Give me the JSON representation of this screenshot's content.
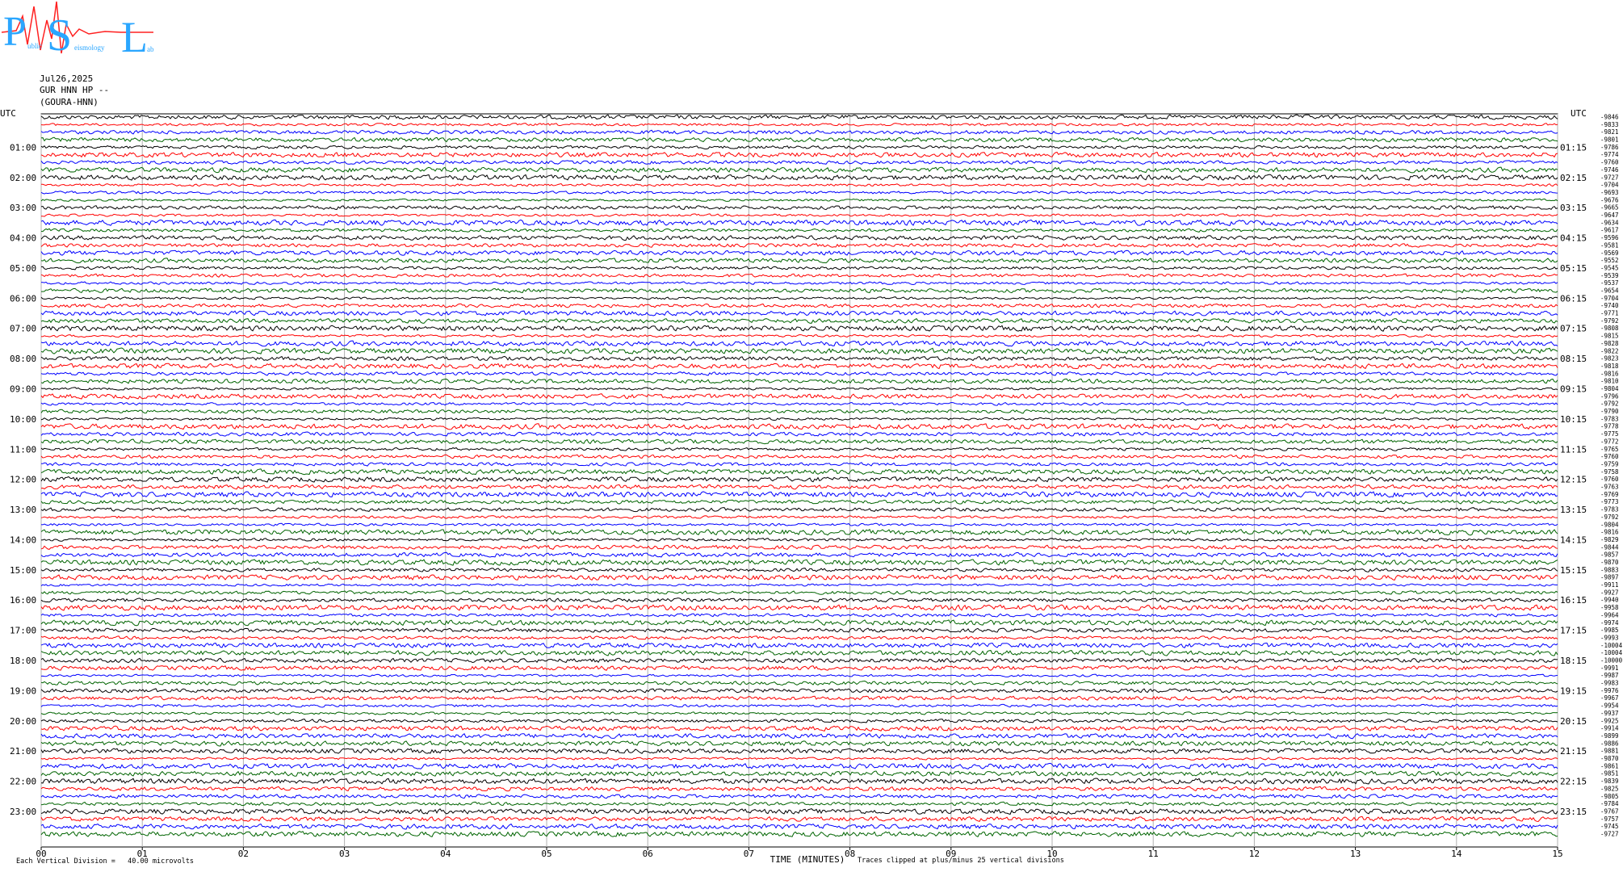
{
  "logo": {
    "letters": [
      "P",
      "S",
      "L"
    ],
    "words": [
      "ublic",
      "eismology",
      "ab"
    ]
  },
  "date": "Jul26,2025",
  "station": "GUR HNN HP --",
  "site": "(GOURA-HNN)",
  "chart_data": {
    "type": "helicorder",
    "left_labels": [
      "UTC",
      "01:00",
      "02:00",
      "03:00",
      "04:00",
      "05:00",
      "06:00",
      "07:00",
      "08:00",
      "09:00",
      "10:00",
      "11:00",
      "12:00",
      "13:00",
      "14:00",
      "15:00",
      "16:00",
      "17:00",
      "18:00",
      "19:00",
      "20:00",
      "21:00",
      "22:00",
      "23:00"
    ],
    "right_labels": [
      "UTC",
      "01:15",
      "02:15",
      "03:15",
      "04:15",
      "05:15",
      "06:15",
      "07:15",
      "08:15",
      "09:15",
      "10:15",
      "11:15",
      "12:15",
      "13:15",
      "14:15",
      "15:15",
      "16:15",
      "17:15",
      "18:15",
      "19:15",
      "20:15",
      "21:15",
      "22:15",
      "23:15"
    ],
    "trace_values": [
      -9846,
      -9833,
      -9821,
      -9801,
      -9786,
      -9774,
      -9760,
      -9746,
      -9727,
      -9704,
      -9693,
      -9676,
      -9665,
      -9647,
      -9634,
      -9617,
      -9596,
      -9581,
      -9569,
      -9552,
      -9545,
      -9539,
      -9537,
      -9654,
      -9704,
      -9740,
      -9771,
      -9792,
      -9808,
      -9815,
      -9828,
      -9822,
      -9823,
      -9818,
      -9816,
      -9810,
      -9804,
      -9796,
      -9792,
      -9790,
      -9783,
      -9778,
      -9775,
      -9772,
      -9765,
      -9760,
      -9759,
      -9758,
      -9760,
      -9763,
      -9769,
      -9773,
      -9783,
      -9792,
      -9804,
      -9816,
      -9829,
      -9844,
      -9857,
      -9870,
      -9883,
      -9897,
      -9911,
      -9927,
      -9940,
      -9958,
      -9964,
      -9974,
      -9985,
      -9993,
      -10004,
      -10004,
      -10000,
      -9991,
      -9987,
      -9983,
      -9976,
      -9967,
      -9954,
      -9937,
      -9925,
      -9914,
      -9899,
      -9886,
      -9881,
      -9870,
      -9861,
      -9851,
      -9839,
      -9825,
      -9805,
      -9784,
      -9767,
      -9757,
      -9745,
      -9727
    ],
    "trace_colors": [
      "#000000",
      "#ff0000",
      "#0000ff",
      "#006400"
    ],
    "xlim": [
      0,
      15
    ],
    "xticks": [
      {
        "value": 0,
        "label": "00"
      },
      {
        "value": 1,
        "label": "01"
      },
      {
        "value": 2,
        "label": "02"
      },
      {
        "value": 3,
        "label": "03"
      },
      {
        "value": 4,
        "label": "04"
      },
      {
        "value": 5,
        "label": "05"
      },
      {
        "value": 6,
        "label": "06"
      },
      {
        "value": 7,
        "label": "07"
      },
      {
        "value": 8,
        "label": "08"
      },
      {
        "value": 9,
        "label": "09"
      },
      10,
      11,
      12,
      13,
      14,
      15
    ],
    "xlabel": "TIME (MINUTES)",
    "footnote_left": "Each Vertical Division =   40.00 microvolts",
    "footnote_right": "Traces clipped at plus/minus 25 vertical divisions",
    "grid": true
  }
}
